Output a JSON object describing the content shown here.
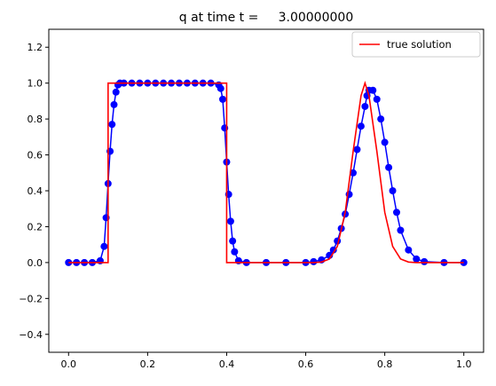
{
  "chart_data": {
    "type": "line",
    "title": "q at time t =     3.00000000",
    "xlabel": "",
    "ylabel": "",
    "xlim": [
      -0.05,
      1.05
    ],
    "ylim": [
      -0.5,
      1.3
    ],
    "xticks": [
      0.0,
      0.2,
      0.4,
      0.6,
      0.8,
      1.0
    ],
    "yticks": [
      -0.4,
      -0.2,
      0.0,
      0.2,
      0.4,
      0.6,
      0.8,
      1.0,
      1.2
    ],
    "xtick_labels": [
      "0.0",
      "0.2",
      "0.4",
      "0.6",
      "0.8",
      "1.0"
    ],
    "ytick_labels": [
      "−0.4",
      "−0.2",
      "0.0",
      "0.2",
      "0.4",
      "0.6",
      "0.8",
      "1.0",
      "1.2"
    ],
    "legend": {
      "position": "top-right",
      "entries": [
        "true solution"
      ]
    },
    "grid": false,
    "series": [
      {
        "name": "true solution",
        "color": "#ff0000",
        "style": "line",
        "x": [
          0.0,
          0.1,
          0.1,
          0.4,
          0.4,
          0.6,
          0.62,
          0.64,
          0.66,
          0.68,
          0.7,
          0.72,
          0.74,
          0.75,
          0.76,
          0.78,
          0.8,
          0.82,
          0.84,
          0.86,
          0.88,
          0.9,
          1.0
        ],
        "y": [
          0.0,
          0.0,
          1.0,
          1.0,
          0.0,
          0.0,
          0.0,
          0.003,
          0.02,
          0.09,
          0.28,
          0.62,
          0.93,
          1.0,
          0.93,
          0.62,
          0.28,
          0.09,
          0.02,
          0.003,
          0.0,
          0.0,
          0.0
        ]
      },
      {
        "name": "",
        "color": "#0000ff",
        "style": "line-markers",
        "x": [
          0.0,
          0.02,
          0.04,
          0.06,
          0.08,
          0.09,
          0.095,
          0.1,
          0.105,
          0.11,
          0.115,
          0.12,
          0.125,
          0.13,
          0.14,
          0.16,
          0.18,
          0.2,
          0.22,
          0.24,
          0.26,
          0.28,
          0.3,
          0.32,
          0.34,
          0.36,
          0.38,
          0.385,
          0.39,
          0.395,
          0.4,
          0.405,
          0.41,
          0.415,
          0.42,
          0.43,
          0.45,
          0.5,
          0.55,
          0.6,
          0.62,
          0.64,
          0.66,
          0.67,
          0.68,
          0.69,
          0.7,
          0.71,
          0.72,
          0.73,
          0.74,
          0.75,
          0.755,
          0.76,
          0.77,
          0.78,
          0.79,
          0.8,
          0.81,
          0.82,
          0.83,
          0.84,
          0.86,
          0.88,
          0.9,
          0.95,
          1.0
        ],
        "y": [
          0.0,
          0.0,
          0.0,
          0.0,
          0.01,
          0.09,
          0.25,
          0.44,
          0.62,
          0.77,
          0.88,
          0.95,
          0.99,
          1.0,
          1.0,
          1.0,
          1.0,
          1.0,
          1.0,
          1.0,
          1.0,
          1.0,
          1.0,
          1.0,
          1.0,
          1.0,
          0.99,
          0.97,
          0.91,
          0.75,
          0.56,
          0.38,
          0.23,
          0.12,
          0.06,
          0.01,
          0.0,
          0.0,
          0.0,
          0.0,
          0.005,
          0.015,
          0.04,
          0.07,
          0.12,
          0.19,
          0.27,
          0.38,
          0.5,
          0.63,
          0.76,
          0.87,
          0.93,
          0.96,
          0.96,
          0.91,
          0.8,
          0.67,
          0.53,
          0.4,
          0.28,
          0.18,
          0.07,
          0.02,
          0.005,
          0.0,
          0.0
        ]
      }
    ]
  }
}
